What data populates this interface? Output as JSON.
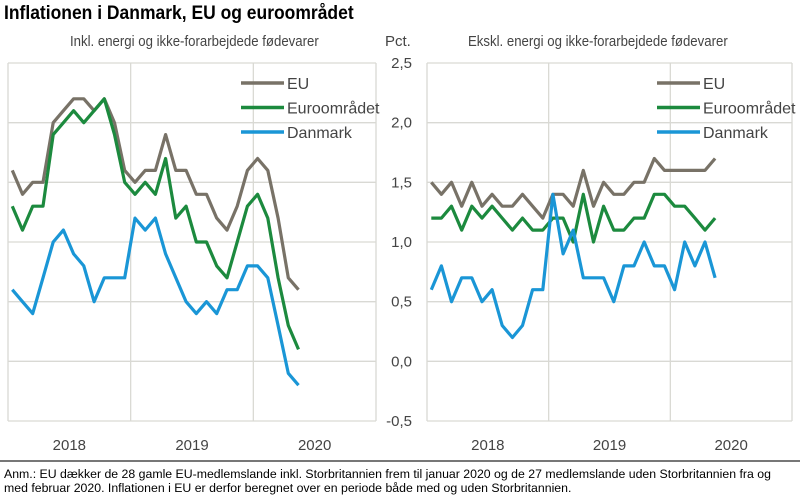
{
  "title": "Inflationen i Danmark, EU og euroområdet",
  "unit_label": "Pct.",
  "note": "Anm.: EU dækker de 28 gamle EU-medlemslande inkl. Storbritannien frem til januar 2020 og de 27 medlemslande uden Storbritannien fra og med februar 2020. Inflationen i EU er derfor beregnet over en periode både med og uden Storbritannien.",
  "colors": {
    "EU": "#787267",
    "Euroområdet": "#1c8a3e",
    "Danmark": "#1a96d6",
    "grid": "#d9d9d4"
  },
  "chart_data": [
    {
      "type": "line",
      "title": "Inkl. energi og ikke-forarbejdede fødevarer",
      "x_start": "2018-01",
      "x_range": [
        "2018-01",
        "2020-12"
      ],
      "x_tick_labels": [
        "2018",
        "2019",
        "2020"
      ],
      "ylim": [
        -0.5,
        2.5
      ],
      "y_ticks": [
        "2,5",
        "2,0",
        "1,5",
        "1,0",
        "0,5",
        "0,0",
        "-0,5"
      ],
      "grid": true,
      "legend": "top-right",
      "series": [
        {
          "name": "EU",
          "values": [
            1.6,
            1.4,
            1.5,
            1.5,
            2.0,
            2.1,
            2.2,
            2.2,
            2.1,
            2.2,
            2.0,
            1.6,
            1.5,
            1.6,
            1.6,
            1.9,
            1.6,
            1.6,
            1.4,
            1.4,
            1.2,
            1.1,
            1.3,
            1.6,
            1.7,
            1.6,
            1.2,
            0.7,
            0.6
          ]
        },
        {
          "name": "Euroområdet",
          "values": [
            1.3,
            1.1,
            1.3,
            1.3,
            1.9,
            2.0,
            2.1,
            2.0,
            2.1,
            2.2,
            1.9,
            1.5,
            1.4,
            1.5,
            1.4,
            1.7,
            1.2,
            1.3,
            1.0,
            1.0,
            0.8,
            0.7,
            1.0,
            1.3,
            1.4,
            1.2,
            0.7,
            0.3,
            0.1
          ]
        },
        {
          "name": "Danmark",
          "values": [
            0.6,
            0.5,
            0.4,
            0.7,
            1.0,
            1.1,
            0.9,
            0.8,
            0.5,
            0.7,
            0.7,
            0.7,
            1.2,
            1.1,
            1.2,
            0.9,
            0.7,
            0.5,
            0.4,
            0.5,
            0.4,
            0.6,
            0.6,
            0.8,
            0.8,
            0.7,
            0.3,
            -0.1,
            -0.2
          ]
        }
      ]
    },
    {
      "type": "line",
      "title": "Ekskl. energi og ikke-forarbejdede fødevarer",
      "x_start": "2018-01",
      "x_range": [
        "2018-01",
        "2020-12"
      ],
      "x_tick_labels": [
        "2018",
        "2019",
        "2020"
      ],
      "ylim": [
        -0.5,
        2.5
      ],
      "y_ticks": [
        "2,5",
        "2,0",
        "1,5",
        "1,0",
        "0,5",
        "0,0",
        "-0,5"
      ],
      "grid": true,
      "legend": "top-right",
      "series": [
        {
          "name": "EU",
          "values": [
            1.5,
            1.4,
            1.5,
            1.3,
            1.5,
            1.3,
            1.4,
            1.3,
            1.3,
            1.4,
            1.3,
            1.2,
            1.4,
            1.4,
            1.3,
            1.6,
            1.3,
            1.5,
            1.4,
            1.4,
            1.5,
            1.5,
            1.7,
            1.6,
            1.6,
            1.6,
            1.6,
            1.6,
            1.7
          ]
        },
        {
          "name": "Euroområdet",
          "values": [
            1.2,
            1.2,
            1.3,
            1.1,
            1.3,
            1.2,
            1.3,
            1.2,
            1.1,
            1.2,
            1.1,
            1.1,
            1.2,
            1.2,
            1.0,
            1.4,
            1.0,
            1.3,
            1.1,
            1.1,
            1.2,
            1.2,
            1.4,
            1.4,
            1.3,
            1.3,
            1.2,
            1.1,
            1.2
          ]
        },
        {
          "name": "Danmark",
          "values": [
            0.6,
            0.8,
            0.5,
            0.7,
            0.7,
            0.5,
            0.6,
            0.3,
            0.2,
            0.3,
            0.6,
            0.6,
            1.4,
            0.9,
            1.1,
            0.7,
            0.7,
            0.7,
            0.5,
            0.8,
            0.8,
            1.0,
            0.8,
            0.8,
            0.6,
            1.0,
            0.8,
            1.0,
            0.7
          ]
        }
      ]
    }
  ]
}
